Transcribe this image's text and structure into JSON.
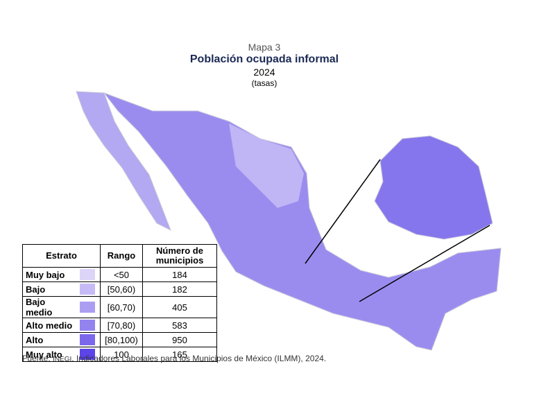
{
  "header": {
    "label": "Mapa 3",
    "title": "Población ocupada informal",
    "year": "2024",
    "unit": "(tasas)"
  },
  "table": {
    "columns": [
      "Estrato",
      "Rango",
      "Número de municipios"
    ],
    "rows": [
      {
        "estrato": "Muy bajo",
        "color": "#dcd5f7",
        "rango": "<50",
        "municipios": 184
      },
      {
        "estrato": "Bajo",
        "color": "#c6bbf6",
        "rango": "[50,60)",
        "municipios": 182
      },
      {
        "estrato": "Bajo medio",
        "color": "#ab9ef2",
        "rango": "[60,70)",
        "municipios": 405
      },
      {
        "estrato": "Alto medio",
        "color": "#9383ef",
        "rango": "[70,80)",
        "municipios": 583
      },
      {
        "estrato": "Alto",
        "color": "#7b67ec",
        "rango": "[80,100)",
        "municipios": 950
      },
      {
        "estrato": "Muy alto",
        "color": "#5b44e8",
        "rango": "100",
        "municipios": 165
      }
    ]
  },
  "source": {
    "prefix": "Fuente:",
    "org": "INEGI",
    "text": ". Indicadores Laborales para los Municipios de México (ILMM), 2024."
  }
}
